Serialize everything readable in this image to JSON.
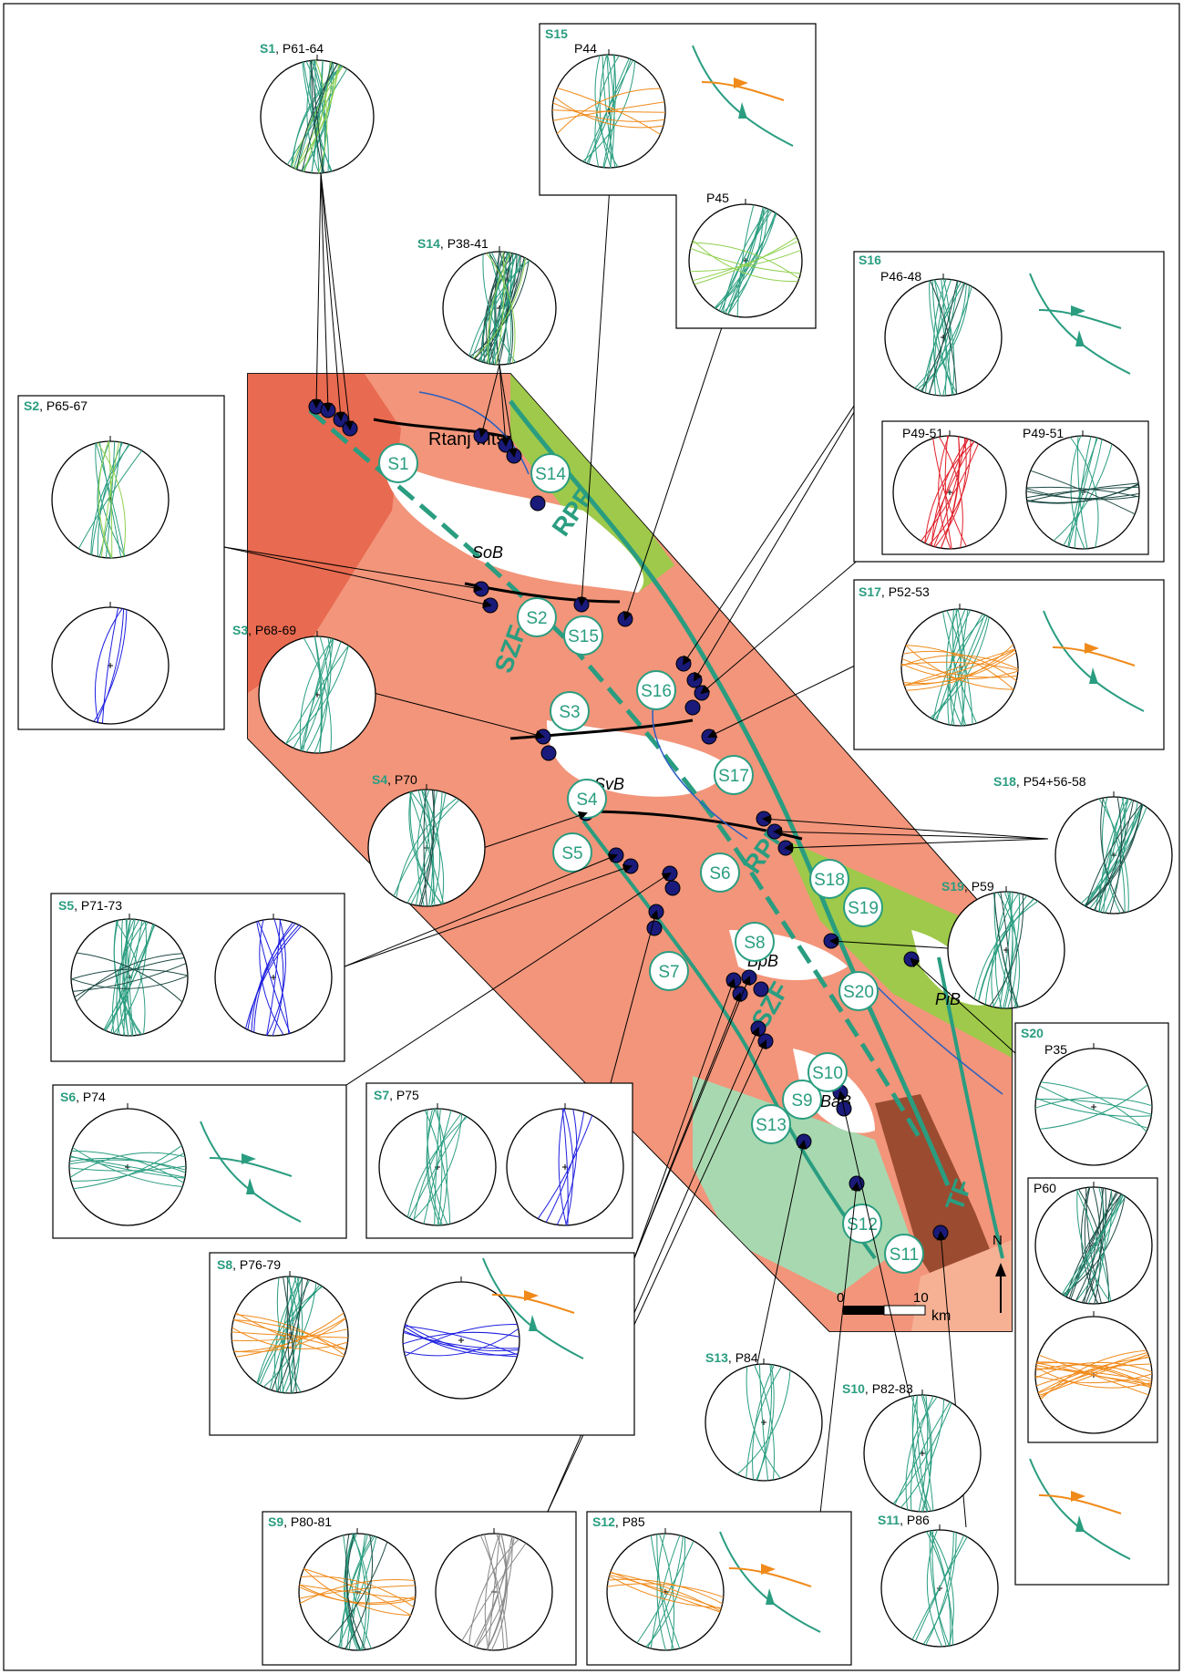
{
  "colors": {
    "fault": "#2a9d80",
    "dark": "#1d4a44",
    "light": "#8fd14f",
    "blue": "#1e1ee0",
    "orange": "#f08a1a",
    "red": "#e0202a",
    "gray": "#888888",
    "station": "#1a1a7a",
    "salmon": "#f2957a",
    "brick": "#e86a50",
    "tan": "#f6b093",
    "lime": "#9ec94a",
    "mint": "#a8d8b0",
    "brown": "#9b4b30",
    "badge": "#2a9d80"
  },
  "map": {
    "basin_labels": [
      "SoB",
      "SvB",
      "BpB",
      "BaB",
      "PiB"
    ],
    "place_label": "Rtanj Mts.",
    "fault_labels": [
      "RPF",
      "SZF",
      "RPF",
      "SZF",
      "TF"
    ],
    "north_label": "N",
    "scale": {
      "zero": "0",
      "ten": "10",
      "unit": "km"
    },
    "stations": [
      "S1",
      "S2",
      "S3",
      "S4",
      "S5",
      "S6",
      "S7",
      "S8",
      "S9",
      "S10",
      "S11",
      "S12",
      "S13",
      "S14",
      "S15",
      "S16",
      "S17",
      "S18",
      "S19",
      "S20"
    ]
  },
  "panels": [
    {
      "id": "S1",
      "label": "P61-64",
      "nets": 1
    },
    {
      "id": "S2",
      "label": "P65-67",
      "nets": 2
    },
    {
      "id": "S3",
      "label": "P68-69",
      "nets": 1
    },
    {
      "id": "S4",
      "label": "P70",
      "nets": 1
    },
    {
      "id": "S5",
      "label": "P71-73",
      "nets": 2
    },
    {
      "id": "S6",
      "label": "P74",
      "nets": 1
    },
    {
      "id": "S7",
      "label": "P75",
      "nets": 2
    },
    {
      "id": "S8",
      "label": "P76-79",
      "nets": 2
    },
    {
      "id": "S9",
      "label": "P80-81",
      "nets": 2
    },
    {
      "id": "S10",
      "label": "P82-83",
      "nets": 1
    },
    {
      "id": "S11",
      "label": "P86",
      "nets": 1
    },
    {
      "id": "S12",
      "label": "P85",
      "nets": 1
    },
    {
      "id": "S13",
      "label": "P84",
      "nets": 1
    },
    {
      "id": "S14",
      "label": "P38-41",
      "nets": 1
    },
    {
      "id": "S15",
      "labels": [
        "P44",
        "P45"
      ],
      "nets": 2
    },
    {
      "id": "S16",
      "labels": [
        "P46-48",
        "P49-51",
        "P49-51"
      ],
      "nets": 3
    },
    {
      "id": "S17",
      "label": "P52-53",
      "nets": 1
    },
    {
      "id": "S18",
      "label": "P54+56-58",
      "nets": 1
    },
    {
      "id": "S19",
      "label": "P59",
      "nets": 1
    },
    {
      "id": "S20",
      "labels": [
        "P35",
        "P60"
      ],
      "nets": 3
    }
  ]
}
